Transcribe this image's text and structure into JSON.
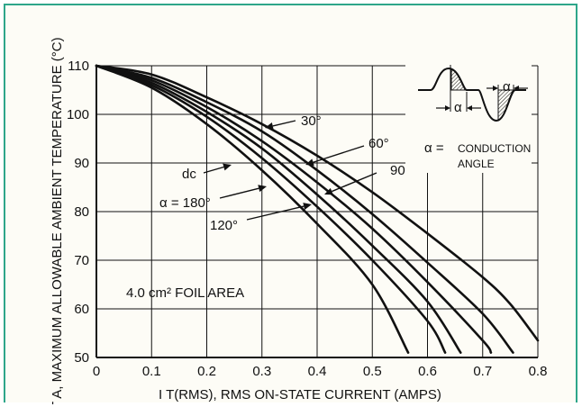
{
  "page": {
    "frame_color": "#2ea68a",
    "background": "#fdfcf6"
  },
  "chart_data": {
    "type": "line",
    "xlabel": "I T(RMS), RMS ON-STATE CURRENT (AMPS)",
    "ylabel": "T A, MAXIMUM ALLOWABLE AMBIENT TEMPERATURE (°C)",
    "xlim": [
      0,
      0.8
    ],
    "ylim": [
      50,
      110
    ],
    "x_ticks": [
      "0",
      "0.1",
      "0.2",
      "0.3",
      "0.4",
      "0.5",
      "0.6",
      "0.7",
      "0.8"
    ],
    "y_ticks": [
      "50",
      "60",
      "70",
      "80",
      "90",
      "100",
      "110"
    ],
    "grid": true,
    "series": [
      {
        "name": "30°",
        "x": [
          0,
          0.1,
          0.2,
          0.3,
          0.4,
          0.5,
          0.6,
          0.7,
          0.75,
          0.8
        ],
        "y": [
          110,
          108.2,
          103.5,
          98,
          91.5,
          84,
          75.5,
          66.5,
          61,
          53.5
        ]
      },
      {
        "name": "60°",
        "x": [
          0,
          0.1,
          0.2,
          0.3,
          0.4,
          0.5,
          0.6,
          0.7,
          0.755
        ],
        "y": [
          110,
          107.5,
          102.5,
          96.5,
          88.5,
          79.5,
          69.5,
          59,
          51
        ]
      },
      {
        "name": "90°",
        "x": [
          0,
          0.1,
          0.2,
          0.3,
          0.4,
          0.5,
          0.6,
          0.7,
          0.715
        ],
        "y": [
          110,
          107,
          101.5,
          94.5,
          86,
          76.5,
          65.5,
          53.5,
          51
        ]
      },
      {
        "name": "120°",
        "x": [
          0,
          0.1,
          0.2,
          0.3,
          0.4,
          0.5,
          0.6,
          0.66
        ],
        "y": [
          110,
          106.5,
          100.5,
          93,
          83.5,
          73,
          61.5,
          51
        ]
      },
      {
        "name": "α = 180°",
        "x": [
          0,
          0.1,
          0.2,
          0.3,
          0.4,
          0.5,
          0.6,
          0.632
        ],
        "y": [
          110,
          106,
          99.5,
          91,
          81,
          70,
          57.5,
          51
        ]
      },
      {
        "name": "dc",
        "x": [
          0,
          0.1,
          0.2,
          0.3,
          0.4,
          0.5,
          0.565
        ],
        "y": [
          110,
          105.5,
          98,
          88.5,
          77.5,
          65,
          51
        ]
      }
    ],
    "annotations": {
      "curve_labels": [
        {
          "text": "30°",
          "series": "30°"
        },
        {
          "text": "60°",
          "series": "60°"
        },
        {
          "text": "90°",
          "series": "90°"
        },
        {
          "text": "120°",
          "series": "120°"
        },
        {
          "text": "α = 180°",
          "series": "α = 180°"
        },
        {
          "text": "dc",
          "series": "dc"
        }
      ],
      "foil_area": "4.0 cm² FOIL AREA",
      "inset_alpha": "α",
      "inset_equals": "α =",
      "inset_line1": "CONDUCTION",
      "inset_line2": "ANGLE"
    }
  }
}
